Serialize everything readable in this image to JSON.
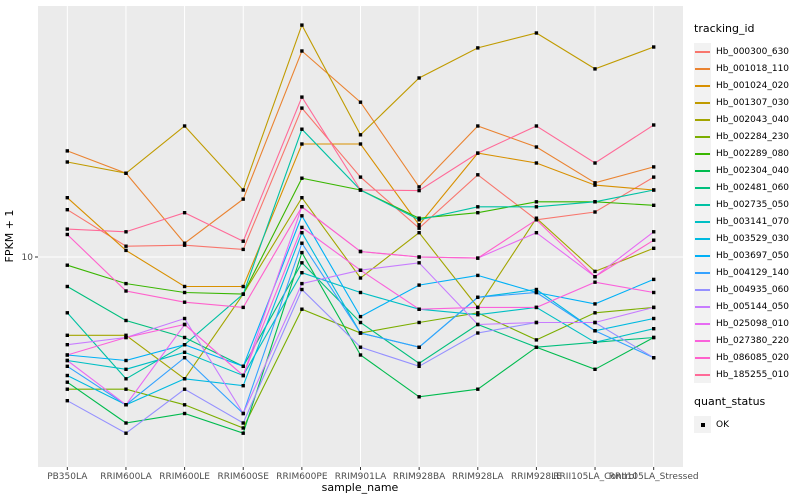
{
  "figure": {
    "bg": "#FFFFFF",
    "panel_bg": "#EBEBEB",
    "grid_color": "#FFFFFF",
    "axis_text_color": "#4D4D4D",
    "tick_mark_color": "#333333",
    "point_color": "#000000",
    "legend_key_bg": "#F2F2F2"
  },
  "chart_data": {
    "type": "line",
    "title": "",
    "xlabel": "sample_name",
    "ylabel": "FPKM + 1",
    "y_scale": "log10",
    "y_ticks": [
      10
    ],
    "ylim": [
      1.6,
      95
    ],
    "grid": "major-only",
    "legend_position": "right",
    "point_shape": "filled-square",
    "categories": [
      "PB350LA",
      "RRIM600LA",
      "RRIM600LE",
      "RRIM600SE",
      "RRIM600PE",
      "RRIM901LA",
      "RRIM928BA",
      "RRIM928LA",
      "RRIM928LE",
      "RRII105LA_Control",
      "RRII105LA_Stressed"
    ],
    "legend1_title": "tracking_id",
    "legend2_title": "quant_status",
    "legend2_items": [
      "OK"
    ],
    "series": [
      {
        "name": "Hb_000300_630",
        "color": "#F8766D",
        "values": [
          15.2,
          11.0,
          11.1,
          10.7,
          37.4,
          20.3,
          12.9,
          20.7,
          13.9,
          14.9,
          20.3
        ]
      },
      {
        "name": "Hb_001018_110",
        "color": "#EA8331",
        "values": [
          25.6,
          21.0,
          11.3,
          16.7,
          62.0,
          39.4,
          18.6,
          31.9,
          26.5,
          19.3,
          22.2
        ]
      },
      {
        "name": "Hb_001024_020",
        "color": "#D89000",
        "values": [
          16.9,
          10.6,
          7.7,
          7.7,
          27.2,
          27.2,
          13.3,
          25.1,
          23.0,
          18.9,
          18.1
        ]
      },
      {
        "name": "Hb_001307_030",
        "color": "#C09B00",
        "values": [
          23.2,
          21.0,
          31.9,
          18.1,
          78.0,
          29.5,
          48.8,
          63.7,
          72.7,
          52.9,
          64.2
        ]
      },
      {
        "name": "Hb_002043_040",
        "color": "#A3A500",
        "values": [
          5.0,
          5.0,
          3.4,
          7.2,
          16.9,
          8.3,
          12.4,
          6.4,
          14.1,
          8.8,
          10.8
        ]
      },
      {
        "name": "Hb_002284_230",
        "color": "#7CAE00",
        "values": [
          3.1,
          3.1,
          2.7,
          2.2,
          6.3,
          5.1,
          5.6,
          6.1,
          4.8,
          6.1,
          6.4
        ]
      },
      {
        "name": "Hb_002289_080",
        "color": "#39B600",
        "values": [
          9.3,
          7.9,
          7.3,
          7.2,
          20.1,
          18.1,
          14.1,
          14.8,
          16.3,
          16.3,
          15.8
        ]
      },
      {
        "name": "Hb_002304_040",
        "color": "#00BB4E",
        "values": [
          3.3,
          2.3,
          2.5,
          2.1,
          10.4,
          4.2,
          2.9,
          3.1,
          4.5,
          3.7,
          4.9
        ]
      },
      {
        "name": "Hb_002481_060",
        "color": "#00BF7D",
        "values": [
          7.7,
          5.7,
          4.9,
          3.8,
          9.5,
          5.6,
          3.9,
          5.5,
          4.5,
          4.7,
          4.9
        ]
      },
      {
        "name": "Hb_002735_050",
        "color": "#00C1A3",
        "values": [
          6.1,
          3.4,
          4.6,
          7.2,
          31.0,
          18.1,
          13.9,
          15.6,
          15.6,
          16.3,
          18.1
        ]
      },
      {
        "name": "Hb_003141_070",
        "color": "#00BFC4",
        "values": [
          4.0,
          3.7,
          4.3,
          3.5,
          8.7,
          7.3,
          6.3,
          6.0,
          6.4,
          4.7,
          5.3
        ]
      },
      {
        "name": "Hb_003529_030",
        "color": "#00BAE0",
        "values": [
          3.5,
          2.7,
          3.4,
          3.2,
          12.4,
          5.1,
          4.5,
          7.0,
          7.5,
          5.2,
          5.8
        ]
      },
      {
        "name": "Hb_003697_050",
        "color": "#00B0F6",
        "values": [
          4.2,
          4.0,
          4.6,
          3.8,
          14.4,
          5.9,
          7.8,
          8.5,
          7.3,
          6.6,
          8.2
        ]
      },
      {
        "name": "Hb_004129_140",
        "color": "#35A2FF",
        "values": [
          3.8,
          2.7,
          4.1,
          2.5,
          11.3,
          5.1,
          4.5,
          7.0,
          7.3,
          5.2,
          4.1
        ]
      },
      {
        "name": "Hb_004935_060",
        "color": "#9590FF",
        "values": [
          2.8,
          2.1,
          3.1,
          2.3,
          7.5,
          4.5,
          3.8,
          5.1,
          5.6,
          5.6,
          4.1
        ]
      },
      {
        "name": "Hb_005144_050",
        "color": "#C77CFF",
        "values": [
          4.6,
          4.9,
          5.8,
          2.5,
          7.9,
          8.9,
          9.5,
          5.5,
          5.6,
          5.6,
          6.4
        ]
      },
      {
        "name": "Hb_025098_010",
        "color": "#E76BF3",
        "values": [
          4.0,
          2.7,
          5.5,
          3.5,
          15.6,
          10.5,
          10.0,
          9.9,
          12.4,
          8.4,
          12.5
        ]
      },
      {
        "name": "Hb_027380_220",
        "color": "#FA62DB",
        "values": [
          4.2,
          4.9,
          5.5,
          3.5,
          13.0,
          8.9,
          6.3,
          6.4,
          6.4,
          8.0,
          7.3
        ]
      },
      {
        "name": "Hb_086085_020",
        "color": "#FF61CC",
        "values": [
          12.2,
          7.4,
          6.7,
          6.4,
          15.6,
          10.5,
          10.0,
          9.9,
          13.9,
          8.4,
          11.6
        ]
      },
      {
        "name": "Hb_185255_010",
        "color": "#FF6A98",
        "values": [
          12.8,
          12.5,
          14.8,
          11.5,
          41.2,
          18.1,
          18.0,
          25.1,
          31.9,
          23.0,
          32.2
        ]
      }
    ]
  }
}
